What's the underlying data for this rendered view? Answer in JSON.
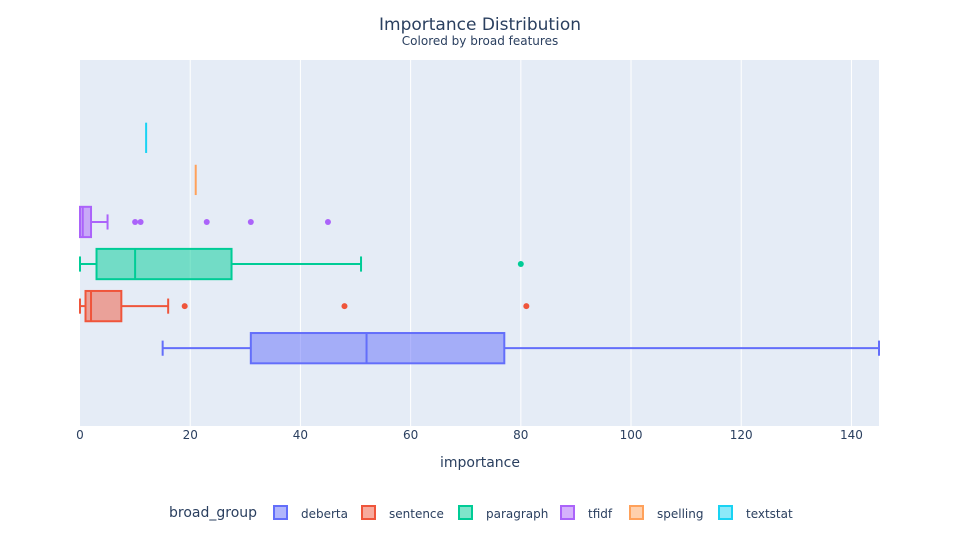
{
  "chart_data": {
    "type": "box",
    "orientation": "horizontal",
    "title": "Importance Distribution",
    "subtitle": "Colored by broad features",
    "xlabel": "importance",
    "xlim": [
      0,
      145
    ],
    "xticks": [
      0,
      20,
      40,
      60,
      80,
      100,
      120,
      140
    ],
    "grid": true,
    "legend_title": "broad_group",
    "legend_position": "bottom",
    "series": [
      {
        "name": "deberta",
        "color": "#636efa",
        "min": 15,
        "q1": 31,
        "median": 52,
        "q3": 77,
        "max": 145,
        "outliers": []
      },
      {
        "name": "sentence",
        "color": "#ef553b",
        "min": 0,
        "q1": 1,
        "median": 2,
        "q3": 7.5,
        "max": 16,
        "outliers": [
          19,
          48,
          81
        ]
      },
      {
        "name": "paragraph",
        "color": "#00cc96",
        "min": 0,
        "q1": 3,
        "median": 10,
        "q3": 27.5,
        "max": 51,
        "outliers": [
          80
        ]
      },
      {
        "name": "tfidf",
        "color": "#ab63fa",
        "min": 0,
        "q1": 0,
        "median": 0.5,
        "q3": 2,
        "max": 5,
        "outliers": [
          10,
          11,
          23,
          31,
          45
        ]
      },
      {
        "name": "spelling",
        "color": "#ffa15a",
        "min": 21,
        "q1": 21,
        "median": 21,
        "q3": 21,
        "max": 21,
        "outliers": []
      },
      {
        "name": "textstat",
        "color": "#19d3f3",
        "min": 12,
        "q1": 12,
        "median": 12,
        "q3": 12,
        "max": 12,
        "outliers": []
      }
    ]
  }
}
